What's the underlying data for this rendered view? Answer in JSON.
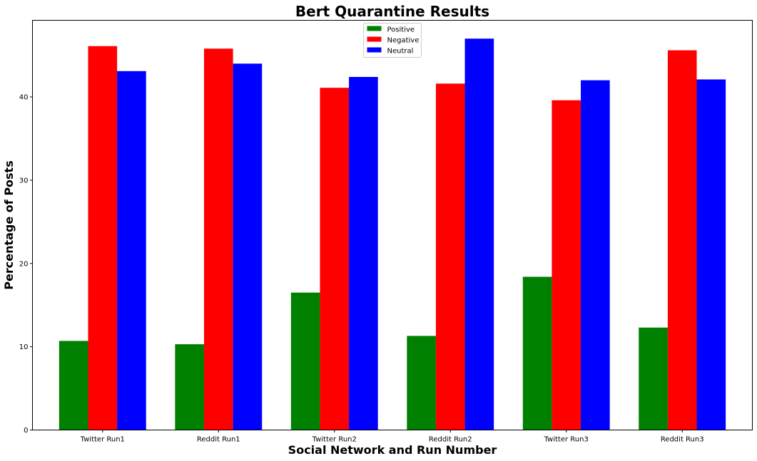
{
  "chart_data": {
    "type": "bar",
    "title": "Bert Quarantine Results",
    "xlabel": "Social Network and Run Number",
    "ylabel": "Percentage of Posts",
    "categories": [
      "Twitter Run1",
      "Reddit Run1",
      "Twitter Run2",
      "Reddit Run2",
      "Twitter Run3",
      "Reddit Run3"
    ],
    "series": [
      {
        "name": "Positive",
        "color": "#008000",
        "values": [
          10.7,
          10.3,
          16.5,
          11.3,
          18.4,
          12.3
        ]
      },
      {
        "name": "Negative",
        "color": "#ff0000",
        "values": [
          46.1,
          45.8,
          41.1,
          41.6,
          39.6,
          45.6
        ]
      },
      {
        "name": "Neutral",
        "color": "#0000ff",
        "values": [
          43.1,
          44.0,
          42.4,
          47.0,
          42.0,
          42.1
        ]
      }
    ],
    "ylim": [
      0,
      49.2
    ],
    "yticks": [
      0,
      10,
      20,
      30,
      40
    ],
    "grid": false,
    "legend_position": "top-center"
  }
}
